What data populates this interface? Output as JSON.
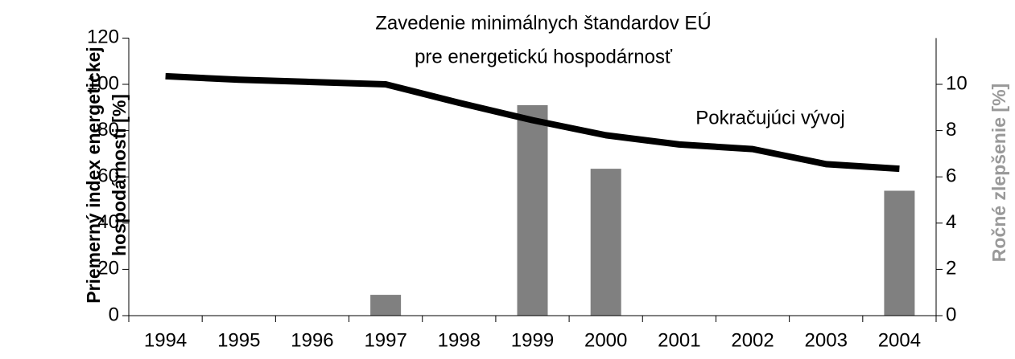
{
  "chart_data": {
    "type": "bar_line",
    "annotations": [
      "Zavedenie minimálnych štandardov EÚ",
      "pre energetickú hospodárnosť",
      "Pokračujúci vývoj"
    ],
    "y_label": [
      "Priemerný index energetickej",
      "hospodárnosti [%]"
    ],
    "y2_label": "Ročné zlepšenie [%]",
    "categories": [
      "1994",
      "1995",
      "1996",
      "1997",
      "1998",
      "1999",
      "2000",
      "2001",
      "2002",
      "2003",
      "2004"
    ],
    "series": [
      {
        "kind": "line",
        "color": "#000000",
        "values": [
          103.5,
          102,
          101,
          100,
          92,
          84.5,
          78,
          74,
          72,
          65.5,
          63.5
        ]
      },
      {
        "kind": "bar",
        "axis": "y2",
        "color": "#808080",
        "values": [
          null,
          null,
          null,
          0.9,
          null,
          9.1,
          6.35,
          null,
          null,
          null,
          5.4
        ]
      }
    ],
    "ylim": [
      0,
      120
    ],
    "yticks": [
      0,
      20,
      40,
      60,
      80,
      100,
      120
    ],
    "y2lim": [
      0,
      12
    ],
    "y2ticks": [
      0,
      2,
      4,
      6,
      8,
      10
    ],
    "y2_label_color": "#999999"
  }
}
